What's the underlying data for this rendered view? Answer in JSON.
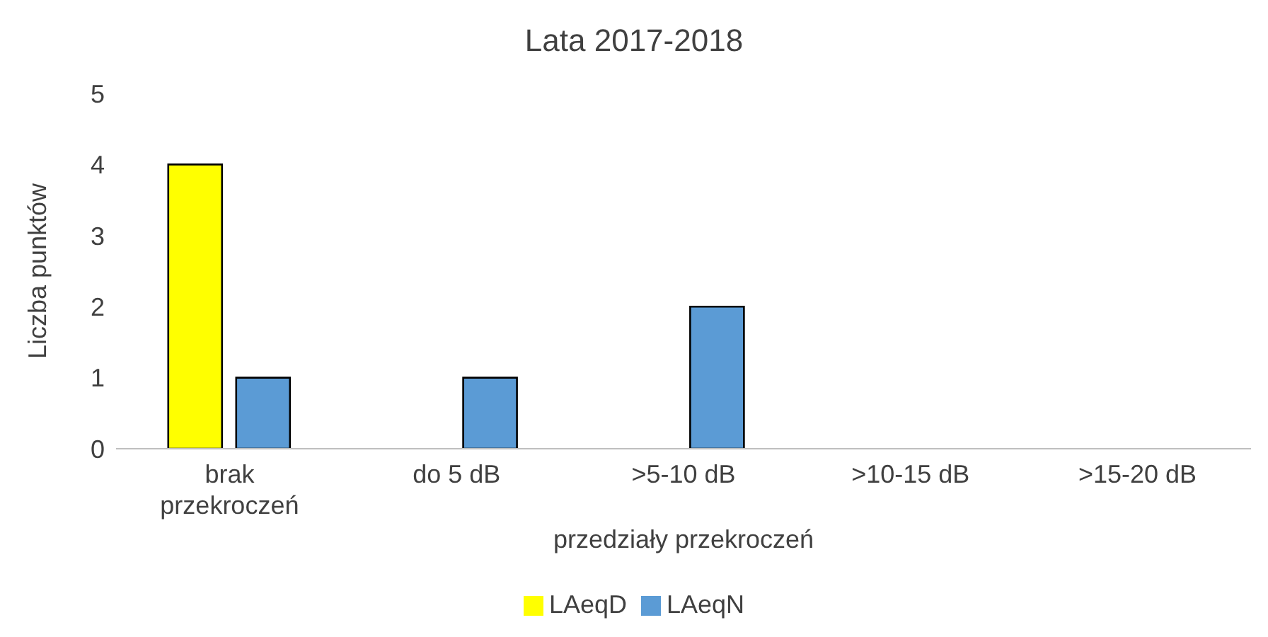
{
  "chart_data": {
    "type": "bar",
    "title": "Lata 2017-2018",
    "xlabel": "przedziały przekroczeń",
    "ylabel": "Liczba punktów",
    "categories": [
      "brak przekroczeń",
      "do 5 dB",
      ">5-10 dB",
      ">10-15 dB",
      ">15-20 dB"
    ],
    "series": [
      {
        "name": "LAeqD",
        "color": "#ffff00",
        "values": [
          4,
          0,
          0,
          0,
          0
        ]
      },
      {
        "name": "LAeqN",
        "color": "#5b9bd5",
        "values": [
          1,
          1,
          2,
          0,
          0
        ]
      }
    ],
    "ylim": [
      0,
      5
    ],
    "yticks": [
      0,
      1,
      2,
      3,
      4,
      5
    ],
    "legend": "bottom"
  }
}
